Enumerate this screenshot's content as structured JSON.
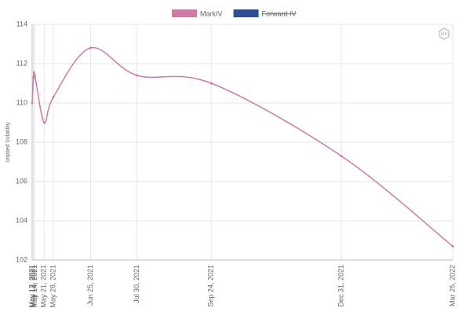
{
  "chart_data": {
    "type": "line",
    "logo": "GV",
    "y_label": "Implied Volatility",
    "x": [
      "May 12, 2021",
      "May 13, 2021",
      "May 14, 2021",
      "May 21, 2021",
      "May 28, 2021",
      "Jun 25, 2021",
      "Jul 30, 2021",
      "Sep 24, 2021",
      "Dec 31, 2021",
      "Mar 25, 2022"
    ],
    "series": [
      {
        "name": "MarkIV",
        "color": "#d07ba6",
        "values": [
          110.0,
          111.3,
          111.4,
          109.0,
          110.3,
          112.8,
          111.4,
          111.0,
          107.3,
          102.7
        ]
      },
      {
        "name": "Forward IV",
        "color": "#2e4d94",
        "hidden": true
      }
    ],
    "ylim": [
      102,
      114
    ],
    "yticks": [
      102,
      104,
      106,
      108,
      110,
      112,
      114
    ],
    "grid": true
  }
}
